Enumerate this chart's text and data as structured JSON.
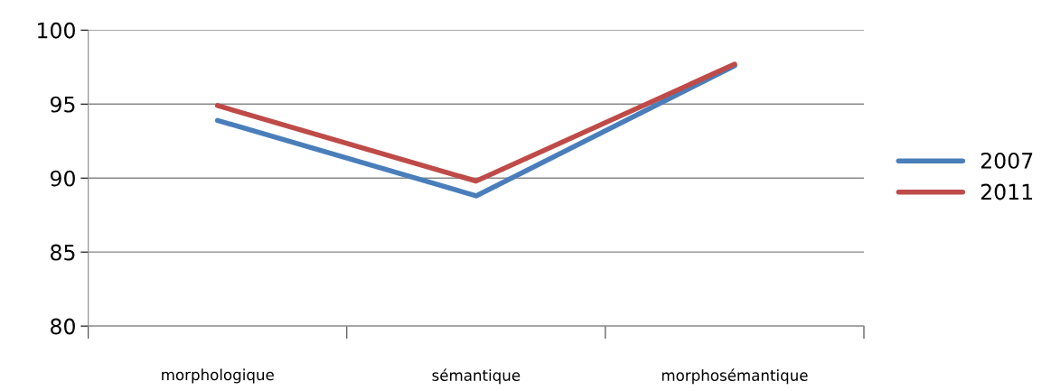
{
  "chart_data": {
    "type": "line",
    "categories": [
      "morphologique",
      "sémantique",
      "morphosémantique"
    ],
    "series": [
      {
        "name": "2007",
        "color": "#4a7ebb",
        "values": [
          93.9,
          88.8,
          97.6
        ]
      },
      {
        "name": "2011",
        "color": "#be4b48",
        "values": [
          94.9,
          89.8,
          97.7
        ]
      }
    ],
    "ylim": [
      80,
      100
    ],
    "yticks": [
      80,
      85,
      90,
      95,
      100
    ],
    "grid": "y",
    "legend": "right",
    "marker": "none",
    "line_style": "solid"
  }
}
